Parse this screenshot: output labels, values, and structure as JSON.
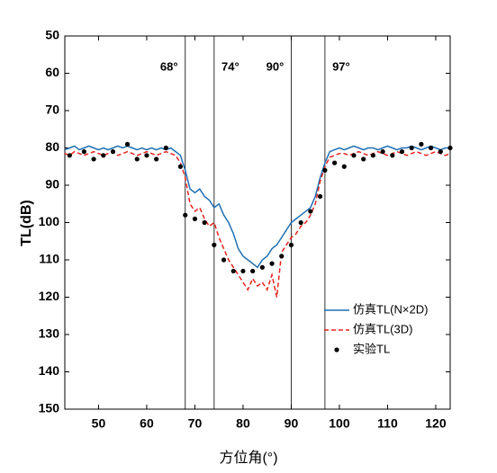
{
  "chart_data": {
    "type": "line",
    "xlabel": "方位角(°)",
    "ylabel": "TL(dB)",
    "xlim": [
      43,
      123
    ],
    "xticks": [
      50,
      60,
      70,
      80,
      90,
      100,
      110,
      120
    ],
    "ylim": [
      50,
      150
    ],
    "yticks": [
      50,
      60,
      70,
      80,
      90,
      100,
      110,
      120,
      130,
      140,
      150
    ],
    "y_inverted": true,
    "grid": false,
    "legend": "lower right",
    "vlines": [
      {
        "value": 68,
        "label": "68°"
      },
      {
        "value": 74,
        "label": "74°"
      },
      {
        "value": 90,
        "label": "90°"
      },
      {
        "value": 97,
        "label": "97°"
      }
    ],
    "x": [
      43,
      44,
      45,
      46,
      47,
      48,
      49,
      50,
      51,
      52,
      53,
      54,
      55,
      56,
      57,
      58,
      59,
      60,
      61,
      62,
      63,
      64,
      65,
      66,
      67,
      68,
      69,
      70,
      71,
      72,
      73,
      74,
      75,
      76,
      77,
      78,
      79,
      80,
      81,
      82,
      83,
      84,
      85,
      86,
      87,
      88,
      89,
      90,
      91,
      92,
      93,
      94,
      95,
      96,
      97,
      98,
      99,
      100,
      101,
      102,
      103,
      104,
      105,
      106,
      107,
      108,
      109,
      110,
      111,
      112,
      113,
      114,
      115,
      116,
      117,
      118,
      119,
      120,
      121,
      122,
      123
    ],
    "series": [
      {
        "name": "仿真TL(N×2D)",
        "color": "#1f6fb4",
        "linestyle": "solid",
        "values": [
          80.5,
          80,
          79.5,
          80.5,
          80,
          79.5,
          80,
          80.5,
          80,
          80.5,
          80,
          79.5,
          80,
          79.5,
          80,
          80.5,
          80,
          80.5,
          80,
          80.5,
          80,
          80.5,
          80,
          81,
          82,
          86,
          91,
          92,
          91,
          93,
          94,
          96,
          95,
          98,
          100,
          103,
          107,
          109,
          110,
          111,
          112,
          110,
          109,
          107,
          106,
          104,
          102,
          100,
          99,
          98,
          97,
          96,
          93,
          88,
          84,
          81,
          80.5,
          80,
          80.5,
          80,
          79.5,
          80,
          80.5,
          80,
          80,
          80.5,
          80,
          79.5,
          80,
          80.5,
          80,
          80,
          79.5,
          80,
          80.5,
          80,
          79.5,
          80,
          80.5,
          80,
          80
        ]
      },
      {
        "name": "仿真TL(3D)",
        "color": "#e8231f",
        "linestyle": "dashed",
        "values": [
          81.5,
          82,
          81,
          81.5,
          82,
          81.5,
          81,
          81.5,
          82,
          81.5,
          81,
          82,
          81.5,
          81,
          81.5,
          82,
          81.5,
          81,
          81.5,
          82,
          81.5,
          81,
          81.5,
          82,
          84,
          88,
          95,
          97,
          96,
          99,
          101,
          100,
          104,
          107,
          110,
          112,
          114,
          116,
          118,
          115,
          117,
          116,
          118,
          114,
          120,
          108,
          106,
          104,
          103,
          101,
          100,
          98,
          95,
          89,
          85,
          82.5,
          82,
          81.5,
          81.5,
          82,
          81.5,
          81,
          81.5,
          82,
          81.5,
          81,
          81.5,
          82,
          81.5,
          81,
          81.5,
          82,
          81.5,
          81,
          81.5,
          82,
          81.5,
          81,
          81.5,
          82,
          81.5
        ]
      },
      {
        "name": "实验TL",
        "color": "#000000",
        "type": "scatter",
        "x": [
          44,
          47,
          49,
          51,
          53,
          56,
          58,
          60,
          62,
          64,
          67,
          68,
          70,
          72,
          74,
          76,
          78,
          80,
          82,
          84,
          86,
          88,
          90,
          92,
          94,
          96,
          97,
          99,
          101,
          103,
          105,
          107,
          109,
          111,
          113,
          115,
          117,
          119,
          121,
          123
        ],
        "values": [
          82,
          81,
          83,
          82,
          81,
          79,
          83,
          82,
          83,
          80,
          85,
          98,
          99,
          100,
          106,
          110,
          113,
          113,
          113,
          112,
          111,
          109,
          106,
          100,
          97,
          93,
          86,
          84,
          85,
          82,
          83,
          82,
          81,
          82,
          81,
          80,
          79,
          80,
          81,
          80
        ]
      }
    ]
  }
}
